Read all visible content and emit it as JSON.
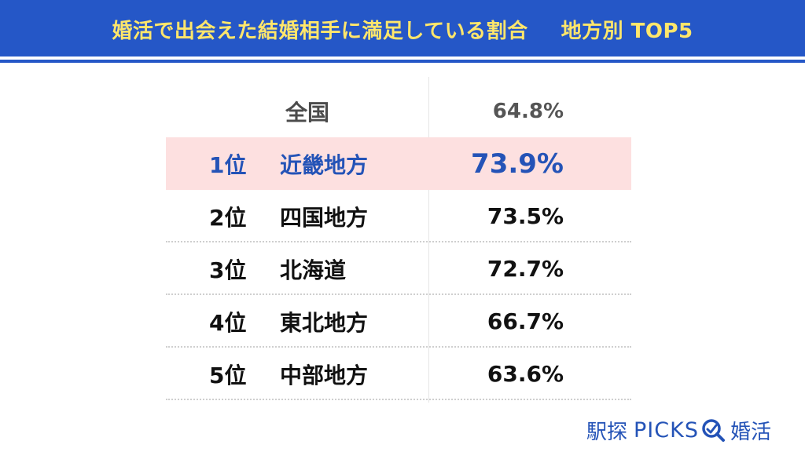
{
  "header": {
    "title": "婚活で出会えた結婚相手に満足している割合",
    "subtitle": "地方別 TOP5"
  },
  "colors": {
    "header_bg": "#2557c7",
    "header_text": "#ffe66b",
    "highlight_bg": "#fde0e0",
    "highlight_text": "#2453b7",
    "brand": "#2453b7"
  },
  "national": {
    "label": "全国",
    "value": "64.8%"
  },
  "rows": [
    {
      "rank": "1位",
      "region": "近畿地方",
      "value": "73.9%"
    },
    {
      "rank": "2位",
      "region": "四国地方",
      "value": "73.5%"
    },
    {
      "rank": "3位",
      "region": "北海道",
      "value": "72.7%"
    },
    {
      "rank": "4位",
      "region": "東北地方",
      "value": "66.7%"
    },
    {
      "rank": "5位",
      "region": "中部地方",
      "value": "63.6%"
    }
  ],
  "brand": {
    "name_ja": "駅探",
    "name_en": "PICKS",
    "icon": "search-icon",
    "category": "婚活"
  }
}
